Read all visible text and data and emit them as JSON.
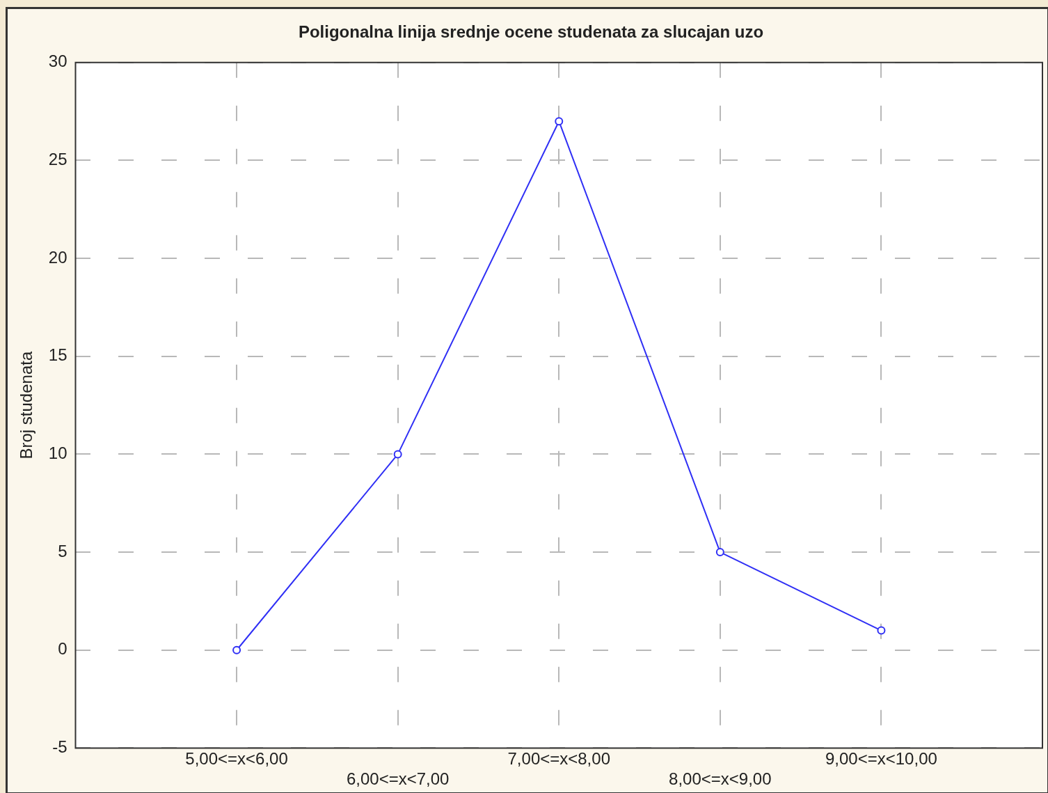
{
  "chart_data": {
    "type": "line",
    "title": "Poligonalna linija srednje ocene studenata za slucajan uzo",
    "ylabel": "Broj studenata",
    "categories": [
      "5,00<=x<6,00",
      "6,00<=x<7,00",
      "7,00<=x<8,00",
      "8,00<=x<9,00",
      "9,00<=x<10,00"
    ],
    "series": [
      {
        "color": "#2f2ff5",
        "values": [
          0,
          10,
          27,
          5,
          1
        ]
      }
    ],
    "ylim": [
      -5,
      30
    ],
    "yticks": [
      -5,
      0,
      5,
      10,
      15,
      20,
      25,
      30
    ],
    "grid": true,
    "legend": false,
    "marker": "circle",
    "line_style": "solid"
  }
}
